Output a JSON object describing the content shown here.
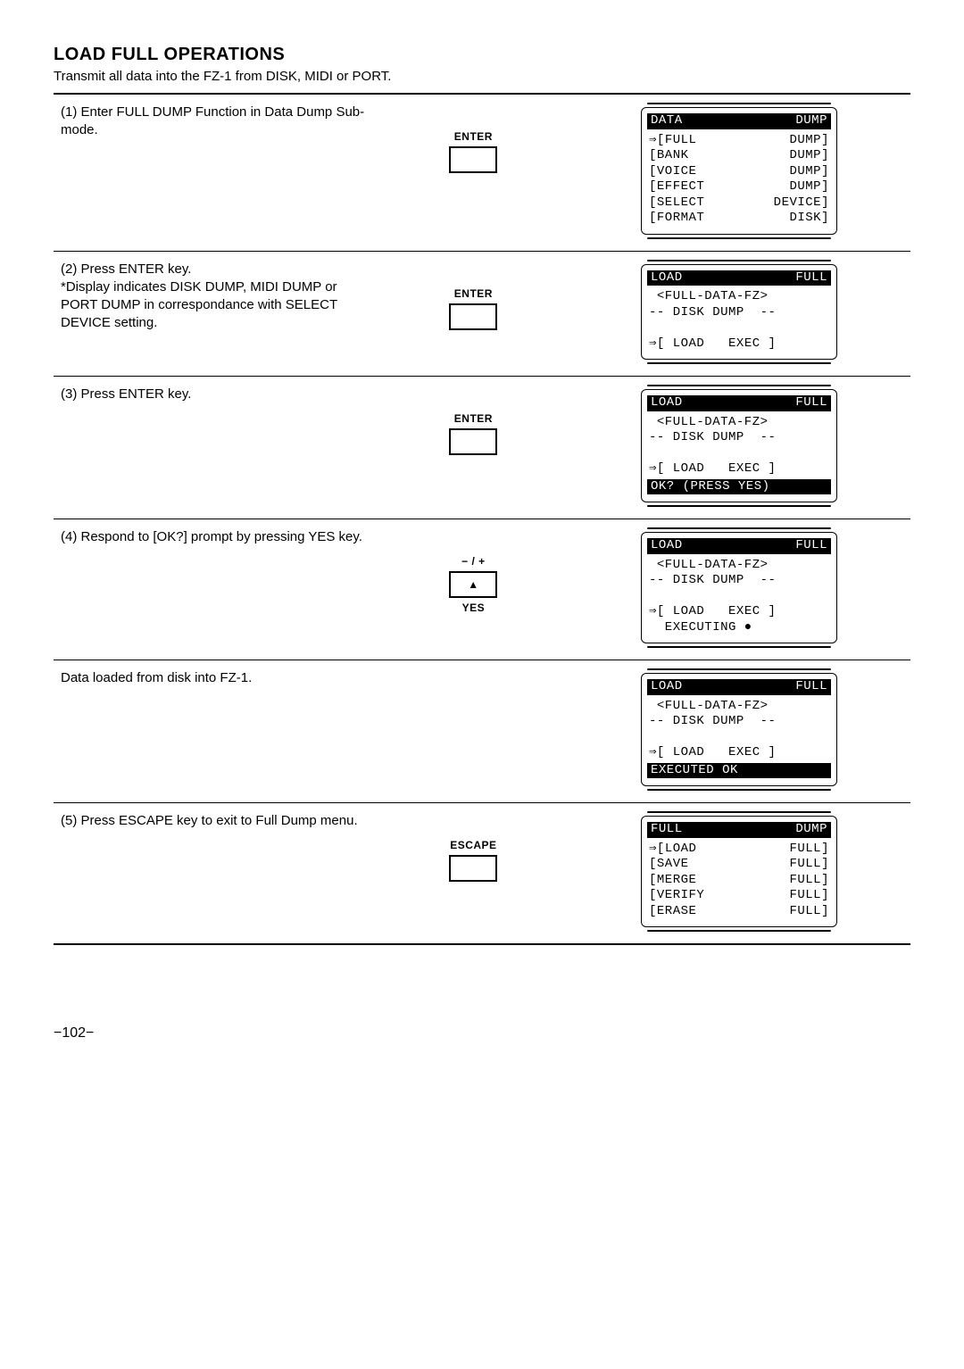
{
  "title": "LOAD FULL OPERATIONS",
  "subtitle": "Transmit all data into the FZ-1 from DISK, MIDI or PORT.",
  "page_number": "−102−",
  "rows": [
    {
      "instruction": "(1) Enter FULL DUMP Function in Data Dump Sub-mode.",
      "key_top": "ENTER",
      "lcd": {
        "header_left": "DATA",
        "header_right": "DUMP",
        "lines": [
          {
            "l": "⇒[FULL",
            "r": "DUMP]"
          },
          {
            "l": "[BANK",
            "r": "DUMP]"
          },
          {
            "l": "[VOICE",
            "r": "DUMP]"
          },
          {
            "l": "[EFFECT",
            "r": "DUMP]"
          },
          {
            "l": "[SELECT",
            "r": "DEVICE]"
          },
          {
            "l": "[FORMAT",
            "r": "DISK]"
          }
        ]
      }
    },
    {
      "instruction": "(2) Press ENTER key.\n*Display indicates DISK DUMP, MIDI DUMP or PORT DUMP in correspondance with SELECT DEVICE setting.",
      "key_top": "ENTER",
      "lcd": {
        "header_left": "LOAD",
        "header_right": "FULL",
        "body": [
          " <FULL-DATA-FZ>",
          "-- DISK DUMP  --",
          " ",
          "⇒[ LOAD   EXEC ]"
        ]
      }
    },
    {
      "instruction": "(3) Press ENTER key.",
      "key_top": "ENTER",
      "lcd": {
        "header_left": "LOAD",
        "header_right": "FULL",
        "body": [
          " <FULL-DATA-FZ>",
          "-- DISK DUMP  --",
          " ",
          "⇒[ LOAD   EXEC ]"
        ],
        "footer_inv": "OK? (PRESS YES)"
      }
    },
    {
      "instruction": "(4) Respond to [OK?] prompt by pressing YES key.",
      "key_top": "− / +",
      "key_glyph": "▲",
      "key_bottom": "YES",
      "lcd": {
        "header_left": "LOAD",
        "header_right": "FULL",
        "body": [
          " <FULL-DATA-FZ>",
          "-- DISK DUMP  --",
          " ",
          "⇒[ LOAD   EXEC ]",
          "  EXECUTING ●"
        ]
      }
    },
    {
      "instruction": "Data loaded from disk into FZ-1.",
      "lcd": {
        "header_left": "LOAD",
        "header_right": "FULL",
        "body": [
          " <FULL-DATA-FZ>",
          "-- DISK DUMP  --",
          " ",
          "⇒[ LOAD   EXEC ]"
        ],
        "footer_inv": "  EXECUTED OK  "
      }
    },
    {
      "instruction": "(5) Press ESCAPE key to exit to Full Dump menu.",
      "key_top": "ESCAPE",
      "lcd": {
        "header_left": "FULL",
        "header_right": "DUMP",
        "lines": [
          {
            "l": "⇒[LOAD",
            "r": "FULL]"
          },
          {
            "l": "[SAVE",
            "r": "FULL]"
          },
          {
            "l": "[MERGE",
            "r": "FULL]"
          },
          {
            "l": "[VERIFY",
            "r": "FULL]"
          },
          {
            "l": "[ERASE",
            "r": "FULL]"
          }
        ]
      }
    }
  ]
}
